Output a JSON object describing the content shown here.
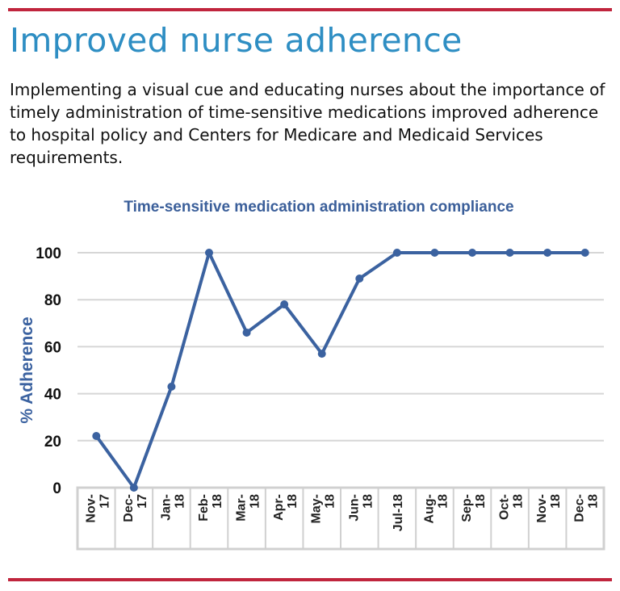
{
  "header": {
    "title": "Improved nurse adherence",
    "description": "Implementing a visual cue and educating nurses about the importance of timely administration of time-sensitive medications improved adherence to hospital policy and Centers for Medicare and Medicaid Services requirements."
  },
  "colors": {
    "accent_rule": "#c0253d",
    "title": "#2e8ec3",
    "series": "#3b62a0"
  },
  "chart_data": {
    "type": "line",
    "title": "Time-sensitive medication administration compliance",
    "xlabel": "",
    "ylabel": "% Adherence",
    "ylim": [
      0,
      100
    ],
    "yticks": [
      0,
      20,
      40,
      60,
      80,
      100
    ],
    "grid": true,
    "categories": [
      "Nov-17",
      "Dec-17",
      "Jan-18",
      "Feb-18",
      "Mar-18",
      "Apr-18",
      "May-18",
      "Jun-18",
      "Jul-18",
      "Aug-18",
      "Sep-18",
      "Oct-18",
      "Nov-18",
      "Dec-18"
    ],
    "values": [
      22,
      0,
      43,
      100,
      66,
      78,
      57,
      89,
      100,
      100,
      100,
      100,
      100,
      100
    ]
  }
}
